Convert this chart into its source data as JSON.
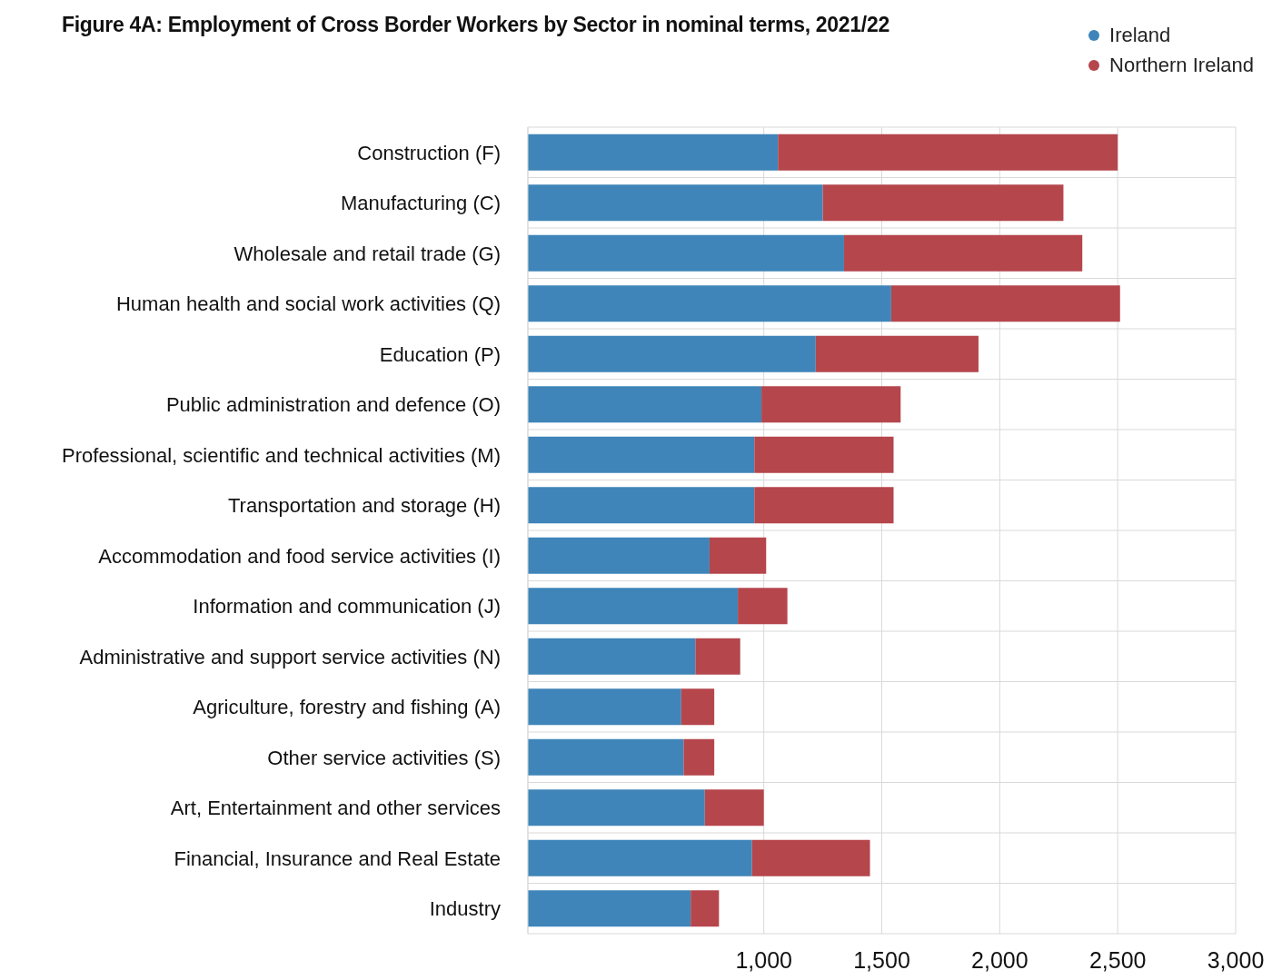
{
  "chart_data": {
    "type": "bar",
    "orientation": "horizontal",
    "stacked": true,
    "title": "Figure 4A: Employment of Cross Border Workers by Sector in nominal terms, 2021/22",
    "categories": [
      "Construction (F)",
      "Manufacturing (C)",
      "Wholesale and retail trade (G)",
      "Human health and social work activities (Q)",
      "Education (P)",
      "Public administration and defence (O)",
      "Professional, scientific and technical activities (M)",
      "Transportation and storage (H)",
      "Accommodation and food service activities (I)",
      "Information and communication (J)",
      "Administrative and support service activities (N)",
      "Agriculture, forestry and fishing (A)",
      "Other service activities (S)",
      "Art, Entertainment and other services",
      "Financial, Insurance and Real Estate",
      "Industry"
    ],
    "series": [
      {
        "name": "Ireland",
        "color": "#3f85b9",
        "values": [
          1060,
          1250,
          1340,
          1540,
          1220,
          990,
          960,
          960,
          770,
          890,
          710,
          650,
          660,
          750,
          950,
          690
        ]
      },
      {
        "name": "Northern Ireland",
        "color": "#b5464c",
        "values": [
          1440,
          1020,
          1010,
          970,
          690,
          590,
          590,
          590,
          240,
          210,
          190,
          140,
          130,
          250,
          500,
          120
        ]
      }
    ],
    "xlim": [
      0,
      3000
    ],
    "xticks": [
      {
        "value": 1000,
        "label": "1,000"
      },
      {
        "value": 1500,
        "label": "1,500"
      },
      {
        "value": 2000,
        "label": "2,000"
      },
      {
        "value": 2500,
        "label": "2,500"
      },
      {
        "value": 3000,
        "label": "3,000"
      }
    ],
    "grid": true,
    "legend": "top right",
    "marker": "circle"
  }
}
